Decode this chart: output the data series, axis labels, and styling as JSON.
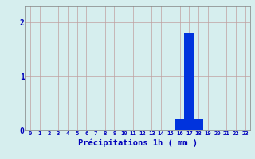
{
  "hours": [
    0,
    1,
    2,
    3,
    4,
    5,
    6,
    7,
    8,
    9,
    10,
    11,
    12,
    13,
    14,
    15,
    16,
    17,
    18,
    19,
    20,
    21,
    22,
    23
  ],
  "values": [
    0,
    0,
    0,
    0,
    0,
    0,
    0,
    0,
    0,
    0,
    0,
    0,
    0,
    0,
    0,
    0,
    0.2,
    1.8,
    0.2,
    0,
    0,
    0,
    0,
    0
  ],
  "bar_color": "#0033dd",
  "bg_color": "#d6eeee",
  "grid_color": "#c0a0a0",
  "xlabel": "Précipitations 1h ( mm )",
  "xlabel_color": "#0000bb",
  "tick_color": "#0000bb",
  "yticks": [
    0,
    1,
    2
  ],
  "ylim": [
    0,
    2.3
  ],
  "xlim": [
    -0.5,
    23.5
  ]
}
